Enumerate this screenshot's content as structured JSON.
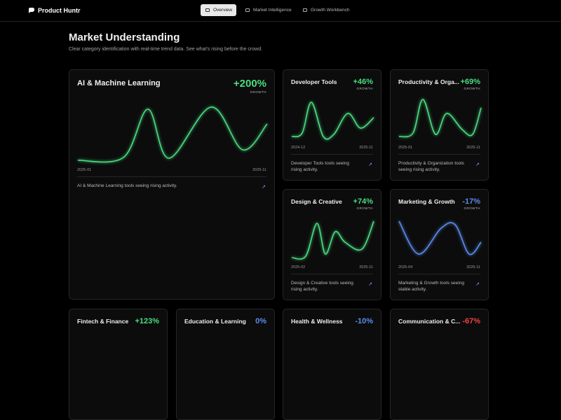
{
  "nav": {
    "brand": "Product Huntr",
    "tabs": [
      "Overview",
      "Market Intelligence",
      "Growth Workbench"
    ]
  },
  "header": {
    "title": "Market Understanding",
    "subtitle": "Clear category identification with real-time trend data. See what's rising before the crowd."
  },
  "featured": {
    "title": "AI & Machine Learning",
    "growth": "+200%",
    "growth_label": "GROWTH",
    "start": "2025-01",
    "end": "2025-11",
    "description": "AI & Machine Learning tools seeing rising activity."
  },
  "cards": [
    {
      "title": "Developer Tools",
      "growth": "+46%",
      "growth_label": "GROWTH",
      "start": "2024-12",
      "end": "2025-11",
      "description": "Developer Tools tools seeing rising activity."
    },
    {
      "title": "Productivity & Orga...",
      "growth": "+69%",
      "growth_label": "GROWTH",
      "start": "2025-01",
      "end": "2025-11",
      "description": "Productivity & Organization tools seeing rising activity."
    },
    {
      "title": "Design & Creative",
      "growth": "+74%",
      "growth_label": "GROWTH",
      "start": "2025-02",
      "end": "2025-11",
      "description": "Design & Creative tools seeing rising activity."
    },
    {
      "title": "Marketing & Growth",
      "growth": "-17%",
      "growth_label": "GROWTH",
      "start": "2025-04",
      "end": "2025-11",
      "description": "Marketing & Growth tools seeing stable activity."
    }
  ],
  "more_cards": [
    {
      "title": "Fintech & Finance",
      "growth": "+123%"
    },
    {
      "title": "Education & Learning",
      "growth": "0%"
    },
    {
      "title": "Health & Wellness",
      "growth": "-10%"
    },
    {
      "title": "Communication & C...",
      "growth": "-67%"
    }
  ]
}
